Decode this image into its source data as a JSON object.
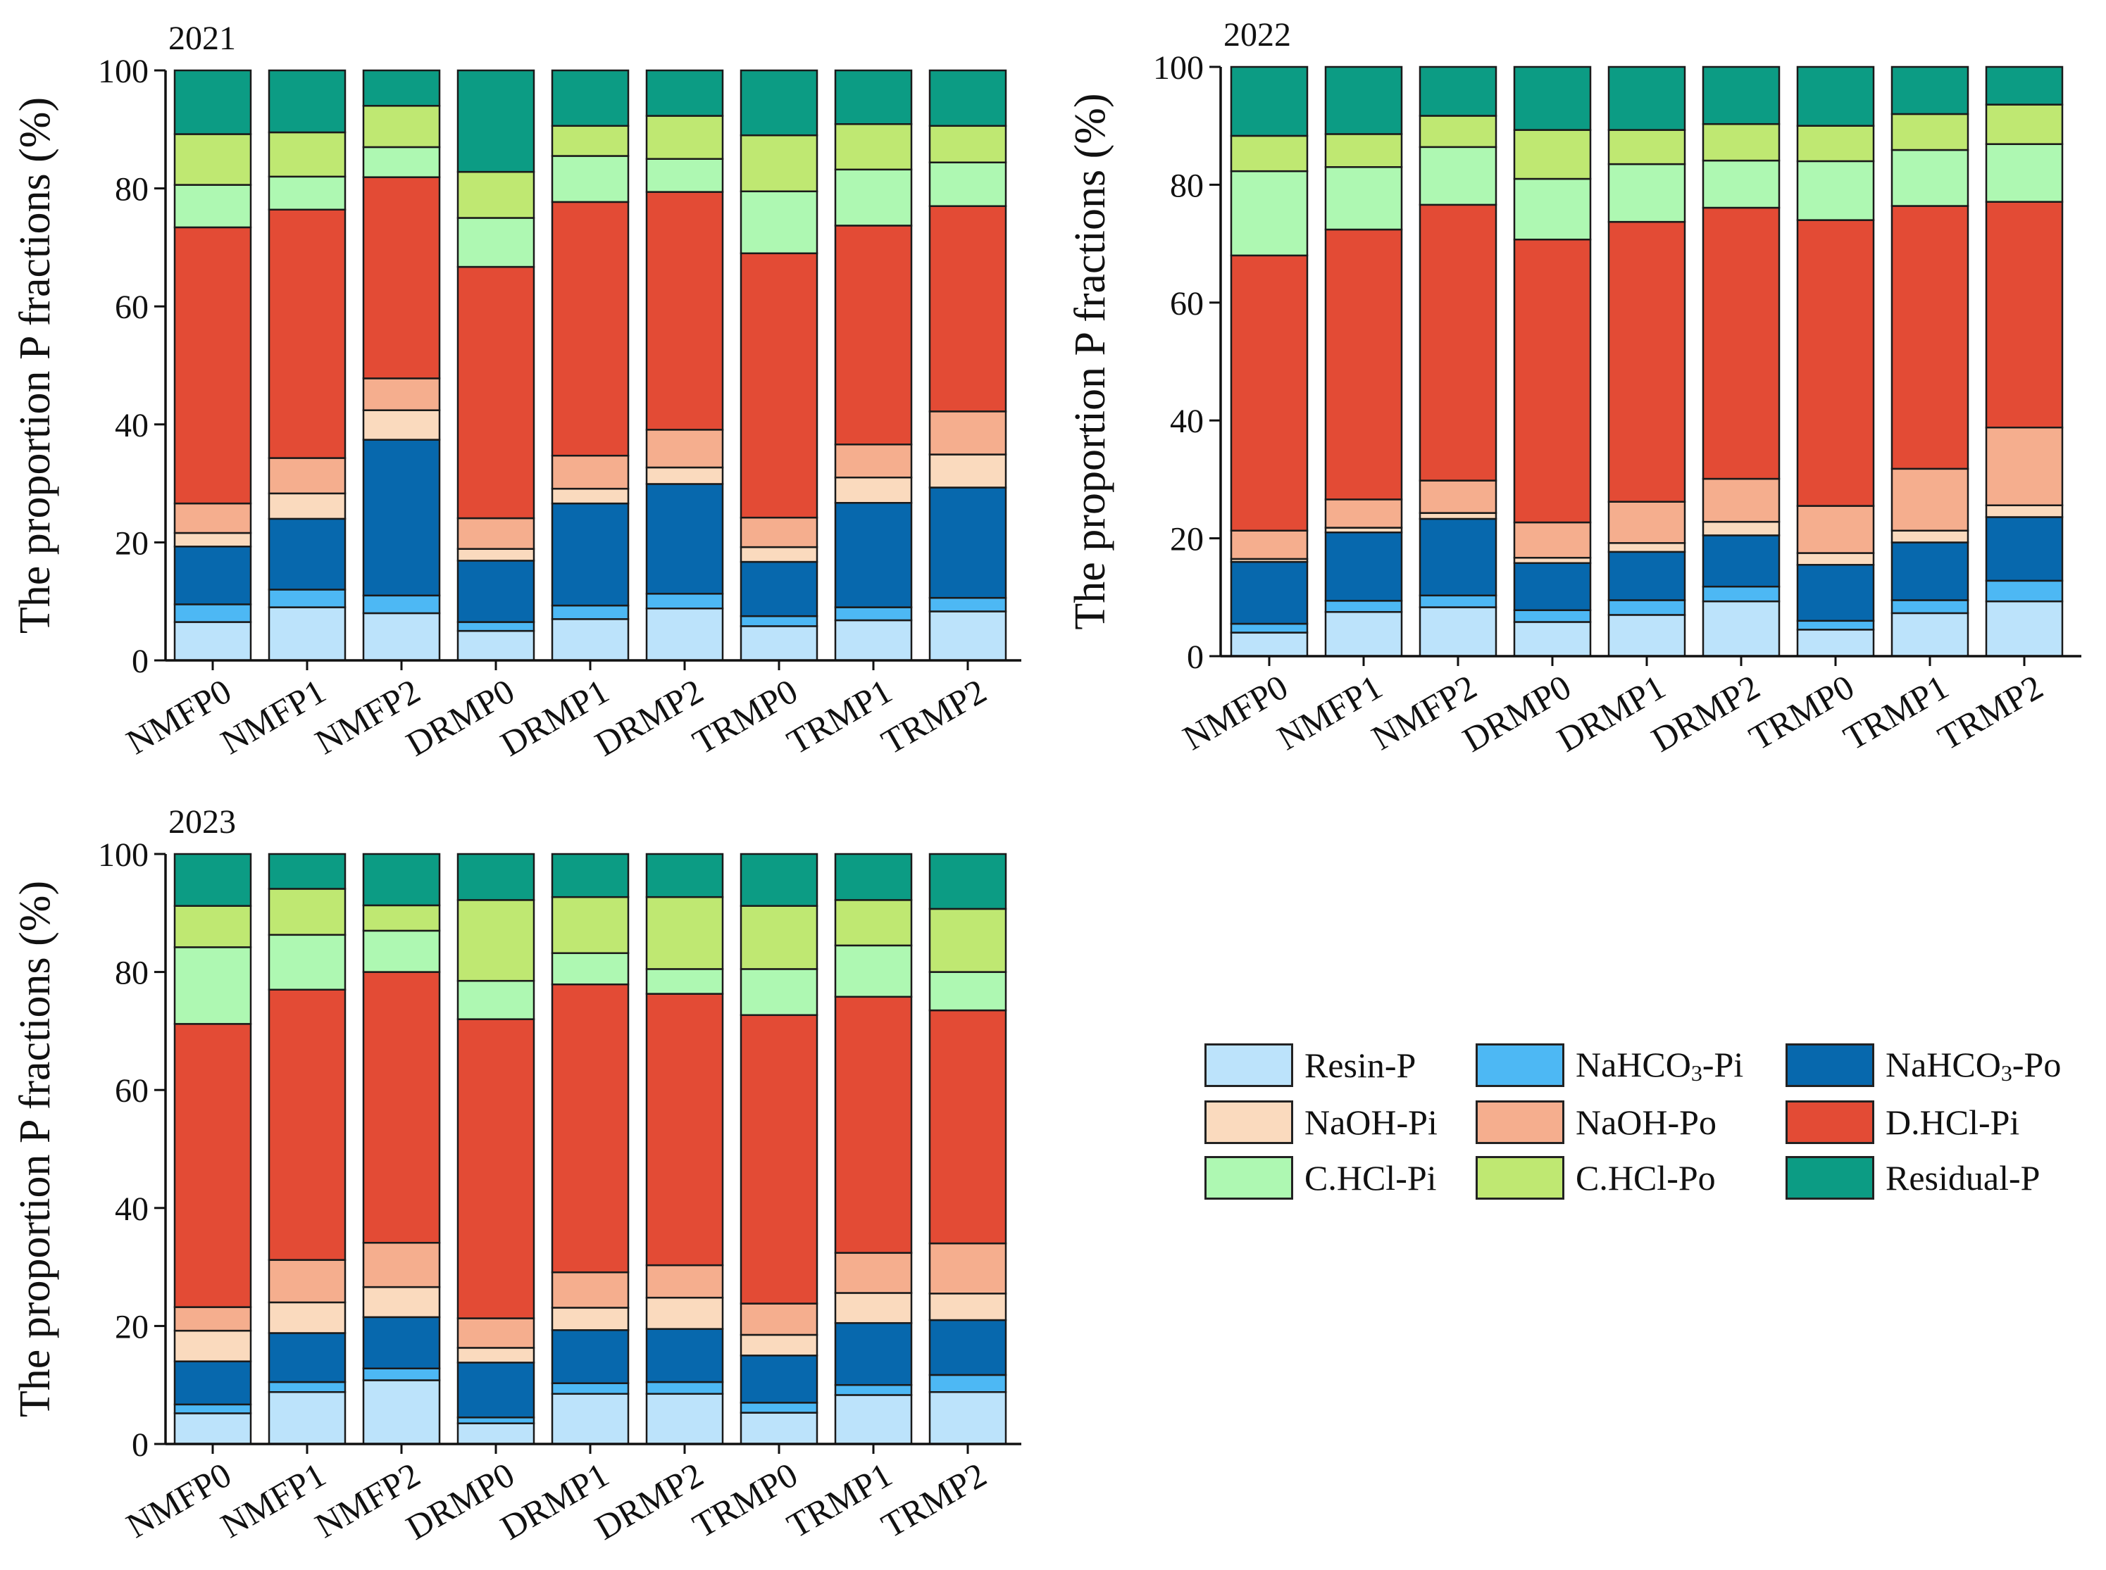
{
  "chart_data": [
    {
      "type": "bar",
      "stacked": true,
      "title": "2021",
      "ylabel": "The proportion P fractions (%)",
      "xlabel": "",
      "ylim": [
        0,
        100
      ],
      "yticks": [
        "0",
        "20",
        "40",
        "60",
        "80",
        "100"
      ],
      "categories": [
        "NMFP0",
        "NMFP1",
        "NMFP2",
        "DRMP0",
        "DRMP1",
        "DRMP2",
        "TRMP0",
        "TRMP1",
        "TRMP2"
      ],
      "series": [
        {
          "name": "Resin-P",
          "values": [
            6.5,
            9.0,
            8.0,
            5.0,
            7.0,
            8.8,
            5.8,
            6.8,
            8.3
          ]
        },
        {
          "name": "NaHCO3-Pi",
          "values": [
            3.0,
            3.0,
            3.0,
            1.5,
            2.3,
            2.5,
            1.7,
            2.2,
            2.3
          ]
        },
        {
          "name": "NaHCO3-Po",
          "values": [
            9.8,
            12.0,
            26.4,
            10.4,
            17.3,
            18.6,
            9.2,
            17.7,
            18.7
          ]
        },
        {
          "name": "NaOH-Pi",
          "values": [
            2.3,
            4.3,
            5.0,
            2.0,
            2.5,
            2.8,
            2.5,
            4.3,
            5.6
          ]
        },
        {
          "name": "NaOH-Po",
          "values": [
            5.0,
            6.0,
            5.4,
            5.2,
            5.6,
            6.4,
            5.0,
            5.6,
            7.3
          ]
        },
        {
          "name": "D.HCl-Pi",
          "values": [
            46.8,
            42.1,
            34.1,
            42.6,
            43.0,
            40.3,
            44.8,
            37.1,
            34.8
          ]
        },
        {
          "name": "C.HCl-Pi",
          "values": [
            7.2,
            5.6,
            5.1,
            8.3,
            7.8,
            5.6,
            10.5,
            9.5,
            7.4
          ]
        },
        {
          "name": "C.HCl-Po",
          "values": [
            8.6,
            7.5,
            7.0,
            7.8,
            5.1,
            7.3,
            9.5,
            7.7,
            6.2
          ]
        },
        {
          "name": "Residual-P",
          "values": [
            10.8,
            10.5,
            6.0,
            17.2,
            9.4,
            7.7,
            11.0,
            9.1,
            9.4
          ]
        }
      ]
    },
    {
      "type": "bar",
      "stacked": true,
      "title": "2022",
      "ylabel": "The proportion P fractions (%)",
      "xlabel": "",
      "ylim": [
        0,
        100
      ],
      "yticks": [
        "0",
        "20",
        "40",
        "60",
        "80",
        "100"
      ],
      "categories": [
        "NMFP0",
        "NMFP1",
        "NMFP2",
        "DRMP0",
        "DRMP1",
        "DRMP2",
        "TRMP0",
        "TRMP1",
        "TRMP2"
      ],
      "series": [
        {
          "name": "Resin-P",
          "values": [
            4.0,
            7.5,
            8.3,
            5.8,
            7.0,
            9.3,
            4.5,
            7.3,
            9.3
          ]
        },
        {
          "name": "NaHCO3-Pi",
          "values": [
            1.5,
            1.9,
            2.0,
            2.0,
            2.5,
            2.5,
            1.5,
            2.2,
            3.5
          ]
        },
        {
          "name": "NaHCO3-Po",
          "values": [
            10.5,
            11.6,
            13.0,
            8.0,
            8.2,
            8.7,
            9.5,
            9.8,
            10.8
          ]
        },
        {
          "name": "NaOH-Pi",
          "values": [
            0.5,
            0.8,
            1.0,
            0.9,
            1.5,
            2.3,
            2.0,
            2.0,
            2.0
          ]
        },
        {
          "name": "NaOH-Po",
          "values": [
            4.8,
            4.8,
            5.5,
            6.0,
            7.0,
            7.3,
            8.0,
            10.5,
            13.2
          ]
        },
        {
          "name": "D.HCl-Pi",
          "values": [
            46.7,
            45.8,
            46.8,
            48.0,
            47.5,
            46.0,
            48.5,
            44.6,
            38.3
          ]
        },
        {
          "name": "C.HCl-Pi",
          "values": [
            14.3,
            10.6,
            9.8,
            10.3,
            9.8,
            8.0,
            10.0,
            9.5,
            9.8
          ]
        },
        {
          "name": "C.HCl-Po",
          "values": [
            6.0,
            5.6,
            5.3,
            8.3,
            5.8,
            6.2,
            6.0,
            6.1,
            6.7
          ]
        },
        {
          "name": "Residual-P",
          "values": [
            11.7,
            11.4,
            8.3,
            10.7,
            10.7,
            9.7,
            10.0,
            8.0,
            6.4
          ]
        }
      ]
    },
    {
      "type": "bar",
      "stacked": true,
      "title": "2023",
      "ylabel": "The proportion P fractions (%)",
      "xlabel": "",
      "ylim": [
        0,
        100
      ],
      "yticks": [
        "0",
        "20",
        "40",
        "60",
        "80",
        "100"
      ],
      "categories": [
        "NMFP0",
        "NMFP1",
        "NMFP2",
        "DRMP0",
        "DRMP1",
        "DRMP2",
        "TRMP0",
        "TRMP1",
        "TRMP2"
      ],
      "series": [
        {
          "name": "Resin-P",
          "values": [
            5.2,
            8.8,
            10.8,
            3.5,
            8.5,
            8.5,
            5.3,
            8.3,
            8.8
          ]
        },
        {
          "name": "NaHCO3-Pi",
          "values": [
            1.5,
            1.7,
            2.0,
            1.0,
            1.8,
            2.0,
            1.7,
            1.7,
            2.9
          ]
        },
        {
          "name": "NaHCO3-Po",
          "values": [
            7.3,
            8.3,
            8.7,
            9.3,
            9.0,
            9.0,
            8.0,
            10.5,
            9.3
          ]
        },
        {
          "name": "NaOH-Pi",
          "values": [
            5.2,
            5.2,
            5.1,
            2.5,
            3.8,
            5.3,
            3.5,
            5.1,
            4.5
          ]
        },
        {
          "name": "NaOH-Po",
          "values": [
            4.0,
            7.2,
            7.5,
            5.0,
            6.0,
            5.5,
            5.3,
            6.8,
            8.5
          ]
        },
        {
          "name": "D.HCl-Pi",
          "values": [
            48.0,
            45.8,
            45.9,
            50.7,
            48.8,
            46.0,
            48.9,
            43.4,
            39.5
          ]
        },
        {
          "name": "C.HCl-Pi",
          "values": [
            13.0,
            9.3,
            7.0,
            6.5,
            5.3,
            4.2,
            7.8,
            8.7,
            6.5
          ]
        },
        {
          "name": "C.HCl-Po",
          "values": [
            7.0,
            7.8,
            4.3,
            13.7,
            9.5,
            12.2,
            10.7,
            7.7,
            10.7
          ]
        },
        {
          "name": "Residual-P",
          "values": [
            8.8,
            5.9,
            8.7,
            7.8,
            7.3,
            7.3,
            8.8,
            7.8,
            9.3
          ]
        }
      ]
    }
  ],
  "legend": {
    "placement": "right of 2023 panel",
    "items": [
      {
        "key": "Resin-P",
        "text": "Resin-P",
        "color": "#bce3fb"
      },
      {
        "key": "NaHCO3-Pi",
        "text": "NaHCO",
        "sub": "3",
        "suffix": "-Pi",
        "color": "#4db8f4"
      },
      {
        "key": "NaHCO3-Po",
        "text": "NaHCO",
        "sub": "3",
        "suffix": "-Po",
        "color": "#0768ad"
      },
      {
        "key": "NaOH-Pi",
        "text": "NaOH-Pi",
        "color": "#fadabe"
      },
      {
        "key": "NaOH-Po",
        "text": "NaOH-Po",
        "color": "#f5ae8e"
      },
      {
        "key": "D.HCl-Pi",
        "text": "D.HCl-Pi",
        "color": "#e34b35"
      },
      {
        "key": "C.HCl-Pi",
        "text": "C.HCl-Pi",
        "color": "#aef8b2"
      },
      {
        "key": "C.HCl-Po",
        "text": "C.HCl-Po",
        "color": "#bfe872"
      },
      {
        "key": "Residual-P",
        "text": "Residual-P",
        "color": "#0c9c84"
      }
    ]
  }
}
